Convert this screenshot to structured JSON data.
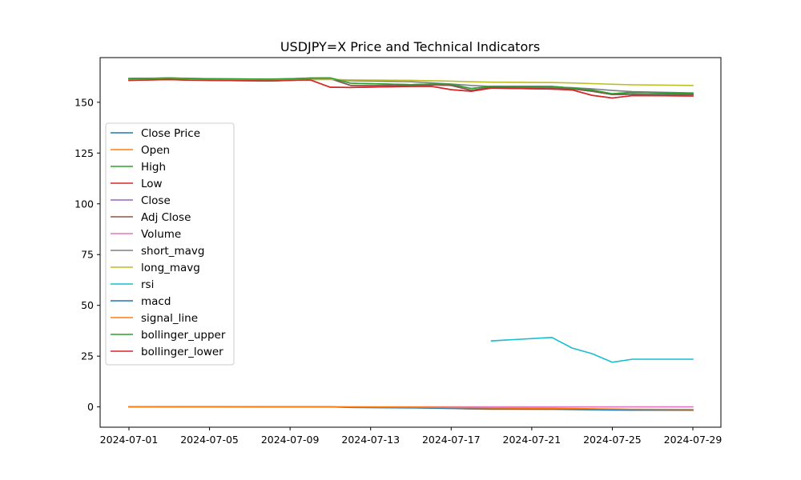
{
  "chart_data": {
    "type": "line",
    "title": "USDJPY=X Price and Technical Indicators",
    "xlabel": "",
    "ylabel": "",
    "ylim": [
      -10,
      172
    ],
    "x_ticks": [
      "2024-07-01",
      "2024-07-05",
      "2024-07-09",
      "2024-07-13",
      "2024-07-17",
      "2024-07-21",
      "2024-07-25",
      "2024-07-29"
    ],
    "y_ticks": [
      0,
      25,
      50,
      75,
      100,
      125,
      150
    ],
    "grid": false,
    "legend_position": "center-left",
    "x": [
      "2024-07-01",
      "2024-07-02",
      "2024-07-03",
      "2024-07-04",
      "2024-07-05",
      "2024-07-08",
      "2024-07-09",
      "2024-07-10",
      "2024-07-11",
      "2024-07-12",
      "2024-07-15",
      "2024-07-16",
      "2024-07-17",
      "2024-07-18",
      "2024-07-19",
      "2024-07-22",
      "2024-07-23",
      "2024-07-24",
      "2024-07-25",
      "2024-07-26",
      "2024-07-29"
    ],
    "series": [
      {
        "name": "Close Price",
        "color": "#1f77b4",
        "values": [
          161.0,
          161.4,
          161.6,
          161.3,
          161.1,
          160.8,
          161.0,
          161.4,
          161.6,
          158.3,
          158.2,
          158.6,
          158.3,
          155.9,
          157.3,
          157.2,
          156.6,
          155.4,
          153.8,
          154.0,
          153.8
        ]
      },
      {
        "name": "Open",
        "color": "#ff7f0e",
        "values": [
          0.0,
          0.05,
          0.1,
          0.1,
          0.1,
          0.05,
          0.0,
          0.0,
          -0.05,
          -0.2,
          -0.4,
          -0.6,
          -0.8,
          -1.0,
          -1.1,
          -1.2,
          -1.3,
          -1.4,
          -1.5,
          -1.5,
          -1.6
        ]
      },
      {
        "name": "High",
        "color": "#2ca02c",
        "values": [
          161.7,
          161.8,
          162.0,
          161.7,
          161.6,
          161.4,
          161.6,
          161.9,
          162.0,
          159.4,
          158.7,
          159.0,
          158.9,
          156.8,
          157.9,
          157.8,
          157.0,
          156.0,
          154.2,
          154.9,
          154.4
        ]
      },
      {
        "name": "Low",
        "color": "#d62728",
        "values": [
          160.8,
          161.0,
          161.2,
          160.9,
          160.8,
          160.5,
          160.8,
          161.0,
          157.4,
          157.3,
          157.8,
          157.9,
          156.2,
          155.4,
          157.0,
          156.5,
          156.1,
          153.4,
          152.1,
          153.3,
          153.1
        ]
      },
      {
        "name": "Close",
        "color": "#9467bd",
        "values": [
          161.0,
          161.4,
          161.6,
          161.3,
          161.1,
          160.8,
          161.0,
          161.4,
          161.6,
          158.3,
          158.2,
          158.6,
          158.3,
          155.9,
          157.3,
          157.2,
          156.6,
          155.4,
          153.8,
          154.0,
          153.8
        ]
      },
      {
        "name": "Adj Close",
        "color": "#8c564b",
        "values": [
          161.0,
          161.4,
          161.6,
          161.3,
          161.1,
          160.8,
          161.0,
          161.4,
          161.6,
          158.3,
          158.2,
          158.6,
          158.3,
          155.9,
          157.3,
          157.2,
          156.6,
          155.4,
          153.8,
          154.0,
          153.8
        ]
      },
      {
        "name": "Volume",
        "color": "#e377c2",
        "values": [
          0,
          0,
          0,
          0,
          0,
          0,
          0,
          0,
          0,
          0,
          0,
          0,
          0,
          0,
          0,
          0,
          0,
          0,
          0,
          0,
          0
        ]
      },
      {
        "name": "short_mavg",
        "color": "#7f7f7f",
        "values": [
          161.0,
          161.2,
          161.3,
          161.3,
          161.3,
          161.2,
          161.1,
          161.2,
          161.3,
          160.6,
          160.1,
          159.6,
          159.0,
          158.3,
          157.8,
          157.5,
          157.2,
          156.6,
          155.8,
          155.2,
          154.6
        ]
      },
      {
        "name": "long_mavg",
        "color": "#bcbd22",
        "values": [
          161.0,
          161.2,
          161.3,
          161.3,
          161.3,
          161.2,
          161.2,
          161.2,
          161.3,
          161.0,
          160.8,
          160.6,
          160.4,
          160.1,
          159.9,
          159.7,
          159.5,
          159.2,
          158.9,
          158.6,
          158.3
        ]
      },
      {
        "name": "rsi",
        "color": "#17becf",
        "values": [
          null,
          null,
          null,
          null,
          null,
          null,
          null,
          null,
          null,
          null,
          null,
          null,
          null,
          null,
          32.5,
          34.2,
          29.0,
          26.2,
          22.0,
          23.5,
          23.5
        ]
      },
      {
        "name": "macd",
        "color": "#1f77b4",
        "values": [
          0.0,
          0.03,
          0.07,
          0.08,
          0.07,
          0.02,
          0.0,
          0.02,
          0.05,
          -0.25,
          -0.45,
          -0.6,
          -0.75,
          -0.95,
          -1.05,
          -1.15,
          -1.25,
          -1.4,
          -1.55,
          -1.6,
          -1.65
        ]
      },
      {
        "name": "signal_line",
        "color": "#ff7f0e",
        "values": [
          0.0,
          0.01,
          0.02,
          0.03,
          0.04,
          0.04,
          0.03,
          0.03,
          0.03,
          -0.03,
          -0.1,
          -0.2,
          -0.3,
          -0.43,
          -0.55,
          -0.67,
          -0.79,
          -0.9,
          -1.03,
          -1.14,
          -1.24
        ]
      },
      {
        "name": "bollinger_upper",
        "color": "#2ca02c",
        "values": [
          161.7,
          161.8,
          162.0,
          161.7,
          161.6,
          161.4,
          161.6,
          161.9,
          162.0,
          159.4,
          158.7,
          159.0,
          158.9,
          156.8,
          157.9,
          157.8,
          157.0,
          156.0,
          154.2,
          154.9,
          154.4
        ]
      },
      {
        "name": "bollinger_lower",
        "color": "#d62728",
        "values": [
          160.8,
          161.0,
          161.2,
          160.9,
          160.8,
          160.5,
          160.8,
          161.0,
          157.4,
          157.3,
          157.8,
          157.9,
          156.2,
          155.4,
          157.0,
          156.5,
          156.1,
          153.4,
          152.1,
          153.3,
          153.1
        ]
      }
    ]
  }
}
